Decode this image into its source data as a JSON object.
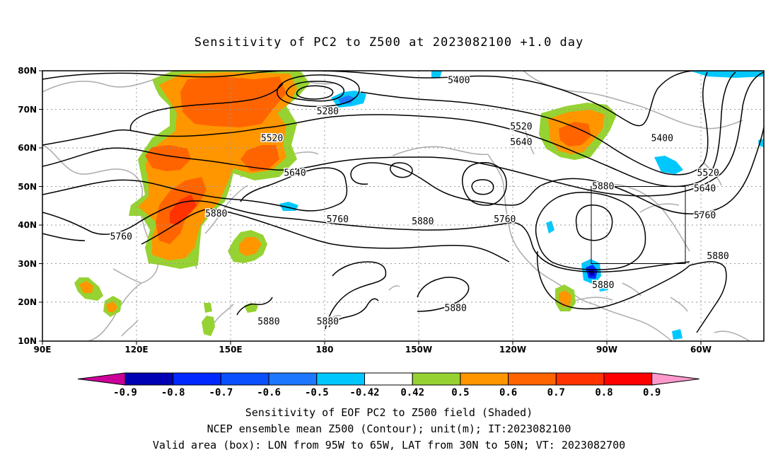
{
  "title": "Sensitivity of PC2 to Z500 at 2023082100 +1.0 day",
  "map": {
    "lat_labels": [
      "80N",
      "70N",
      "60N",
      "50N",
      "40N",
      "30N",
      "20N",
      "10N"
    ],
    "lon_labels": [
      "90E",
      "120E",
      "150E",
      "180",
      "150W",
      "120W",
      "90W",
      "60W"
    ],
    "contour_labels": [
      {
        "text": "5400",
        "lon": -143,
        "lat": 77.5
      },
      {
        "text": "5280",
        "lon": 177,
        "lat": 69.5
      },
      {
        "text": "5520",
        "lon": 160,
        "lat": 62.5
      },
      {
        "text": "5520",
        "lon": -124,
        "lat": 65.5
      },
      {
        "text": "5640",
        "lon": -124,
        "lat": 61.5
      },
      {
        "text": "5640",
        "lon": 167,
        "lat": 53.5
      },
      {
        "text": "5400",
        "lon": -81,
        "lat": 62.5
      },
      {
        "text": "5520",
        "lon": -67,
        "lat": 53.5
      },
      {
        "text": "5640",
        "lon": -68,
        "lat": 49.5
      },
      {
        "text": "5760",
        "lon": -68,
        "lat": 42.5
      },
      {
        "text": "5880",
        "lon": -99,
        "lat": 50
      },
      {
        "text": "5880",
        "lon": 143,
        "lat": 43
      },
      {
        "text": "5760",
        "lon": 114,
        "lat": 37
      },
      {
        "text": "5760",
        "lon": 180,
        "lat": 41.5
      },
      {
        "text": "5880",
        "lon": -154,
        "lat": 41
      },
      {
        "text": "5760",
        "lon": -129,
        "lat": 41.5
      },
      {
        "text": "5880",
        "lon": -64,
        "lat": 32
      },
      {
        "text": "5880",
        "lon": -99,
        "lat": 24.5
      },
      {
        "text": "5880",
        "lon": -144,
        "lat": 18.5
      },
      {
        "text": "5880",
        "lon": 159,
        "lat": 15
      },
      {
        "text": "5880",
        "lon": 177,
        "lat": 15
      }
    ],
    "valid_box": {
      "lon_min": -95,
      "lon_max": -65,
      "lat_min": 30,
      "lat_max": 50
    }
  },
  "colorbar": {
    "tick_labels": [
      "-0.9",
      "-0.8",
      "-0.7",
      "-0.6",
      "-0.5",
      "-0.42",
      "0.42",
      "0.5",
      "0.6",
      "0.7",
      "0.8",
      "0.9"
    ],
    "colors": [
      "#cc0099",
      "#0000b4",
      "#0028ff",
      "#0a50ff",
      "#1e78ff",
      "#00c8ff",
      "#ffffff",
      "#96d232",
      "#ff9600",
      "#ff6400",
      "#ff3200",
      "#ff0000",
      "#ff99cc"
    ]
  },
  "footer": {
    "line1": "Sensitivity of EOF PC2 to Z500 field (Shaded)",
    "line2": "NCEP ensemble mean Z500 (Contour); unit(m); IT:2023082100",
    "line3": "Valid area (box): LON from 95W to 65W, LAT from 30N to 50N; VT: 2023082700"
  }
}
